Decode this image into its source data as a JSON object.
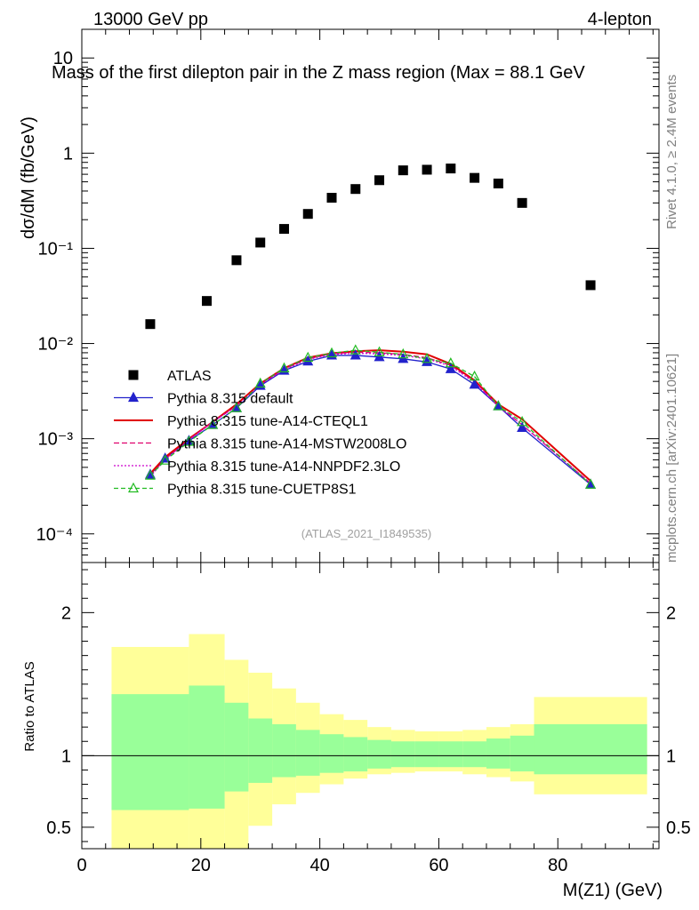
{
  "header": {
    "left": "13000 GeV pp",
    "right": "4-lepton",
    "side_top": "Rivet 4.1.0, ≥ 2.4M events",
    "side_bottom": "mcplots.cern.ch [arXiv:2401.10621]"
  },
  "chart_data": [
    {
      "type": "scatter",
      "panel": "main",
      "title": "Mass of the first dilepton pair in the Z mass region (Max = 88.1 GeV",
      "xlabel": "M(Z1) (GeV)",
      "ylabel": "dσ/dM (fb/GeV)",
      "yscale": "log",
      "xlim": [
        0,
        97
      ],
      "ylim": [
        5e-05,
        20
      ],
      "y_ticks": [
        "10",
        "1",
        "10⁻¹",
        "10⁻²",
        "10⁻³",
        "10⁻⁴"
      ],
      "y_tick_values": [
        10,
        1,
        0.1,
        0.01,
        0.001,
        0.0001
      ],
      "watermark": "(ATLAS_2021_I1849535)",
      "series": [
        {
          "name": "ATLAS",
          "color": "#000000",
          "marker": "square",
          "x": [
            11.5,
            21,
            26,
            30,
            34,
            38,
            42,
            46,
            50,
            54,
            58,
            62,
            66,
            70,
            74,
            85.5
          ],
          "y": [
            0.016,
            0.028,
            0.075,
            0.115,
            0.16,
            0.23,
            0.34,
            0.42,
            0.52,
            0.66,
            0.67,
            0.69,
            0.55,
            0.48,
            0.3,
            0.041
          ]
        },
        {
          "name": "Pythia 8.315 default",
          "color": "#2222cc",
          "marker": "triangle-filled",
          "dash": "",
          "x": [
            11.5,
            14,
            18,
            22,
            26,
            30,
            34,
            38,
            42,
            46,
            50,
            54,
            58,
            62,
            66,
            70,
            74,
            85.5
          ],
          "y": [
            0.00042,
            0.00062,
            0.00095,
            0.0014,
            0.0021,
            0.0036,
            0.0052,
            0.0065,
            0.0075,
            0.0075,
            0.0072,
            0.0069,
            0.0064,
            0.0054,
            0.0037,
            0.0022,
            0.0013,
            0.00033
          ]
        },
        {
          "name": "Pythia 8.315 tune-A14-CTEQL1",
          "color": "#e00000",
          "marker": "none",
          "dash": "",
          "x": [
            11.5,
            14,
            18,
            22,
            26,
            30,
            34,
            38,
            42,
            46,
            50,
            54,
            58,
            62,
            66,
            70,
            74,
            85.5
          ],
          "y": [
            0.00043,
            0.00064,
            0.001,
            0.0015,
            0.0023,
            0.0038,
            0.0055,
            0.0071,
            0.0079,
            0.0083,
            0.0085,
            0.0082,
            0.0077,
            0.0061,
            0.0041,
            0.0023,
            0.0016,
            0.00036
          ]
        },
        {
          "name": "Pythia 8.315 tune-A14-MSTW2008LO",
          "color": "#e0006e",
          "marker": "none",
          "dash": "6,3",
          "x": [
            11.5,
            14,
            18,
            22,
            26,
            30,
            34,
            38,
            42,
            46,
            50,
            54,
            58,
            62,
            66,
            70,
            74,
            85.5
          ],
          "y": [
            0.00041,
            0.00061,
            0.00098,
            0.0015,
            0.0022,
            0.0037,
            0.0054,
            0.0069,
            0.0078,
            0.0081,
            0.008,
            0.0077,
            0.0071,
            0.0059,
            0.004,
            0.0022,
            0.0014,
            0.00034
          ]
        },
        {
          "name": "Pythia 8.315 tune-A14-NNPDF2.3LO",
          "color": "#cc00cc",
          "marker": "none",
          "dash": "2,2",
          "x": [
            11.5,
            14,
            18,
            22,
            26,
            30,
            34,
            38,
            42,
            46,
            50,
            54,
            58,
            62,
            66,
            70,
            74,
            85.5
          ],
          "y": [
            0.0004,
            0.0006,
            0.00097,
            0.0015,
            0.0022,
            0.0037,
            0.0053,
            0.0068,
            0.0077,
            0.0079,
            0.0078,
            0.0075,
            0.0069,
            0.0058,
            0.0039,
            0.0022,
            0.0014,
            0.00034
          ]
        },
        {
          "name": "Pythia 8.315 tune-CUETP8S1",
          "color": "#22bb22",
          "marker": "triangle-open",
          "dash": "5,3",
          "x": [
            11.5,
            14,
            18,
            22,
            26,
            30,
            34,
            38,
            42,
            46,
            50,
            54,
            58,
            62,
            66,
            70,
            74,
            85.5
          ],
          "y": [
            0.00041,
            0.00059,
            0.00093,
            0.0014,
            0.0021,
            0.0038,
            0.0055,
            0.0071,
            0.0079,
            0.0085,
            0.0081,
            0.0077,
            0.0069,
            0.0062,
            0.0045,
            0.0022,
            0.0015,
            0.00033
          ]
        }
      ]
    },
    {
      "type": "area",
      "panel": "ratio",
      "ylabel": "Ratio to ATLAS",
      "xlabel": "M(Z1) (GeV)",
      "xlim": [
        0,
        97
      ],
      "ylim": [
        0.35,
        2.35
      ],
      "x_ticks": [
        "0",
        "20",
        "40",
        "60",
        "80"
      ],
      "x_tick_values": [
        0,
        20,
        40,
        60,
        80
      ],
      "y_ticks": [
        "0.5",
        "1",
        "2"
      ],
      "y_tick_values": [
        0.5,
        1,
        2
      ],
      "bins": [
        {
          "lo": 5,
          "hi": 18,
          "inner": [
            0.62,
            1.43
          ],
          "outer": [
            0.0,
            1.76
          ]
        },
        {
          "lo": 18,
          "hi": 24,
          "inner": [
            0.63,
            1.49
          ],
          "outer": [
            0.0,
            1.85
          ]
        },
        {
          "lo": 24,
          "hi": 28,
          "inner": [
            0.75,
            1.37
          ],
          "outer": [
            0.0,
            1.67
          ]
        },
        {
          "lo": 28,
          "hi": 32,
          "inner": [
            0.81,
            1.26
          ],
          "outer": [
            0.51,
            1.58
          ]
        },
        {
          "lo": 32,
          "hi": 36,
          "inner": [
            0.85,
            1.22
          ],
          "outer": [
            0.66,
            1.47
          ]
        },
        {
          "lo": 36,
          "hi": 40,
          "inner": [
            0.86,
            1.18
          ],
          "outer": [
            0.74,
            1.37
          ]
        },
        {
          "lo": 40,
          "hi": 44,
          "inner": [
            0.88,
            1.15
          ],
          "outer": [
            0.8,
            1.29
          ]
        },
        {
          "lo": 44,
          "hi": 48,
          "inner": [
            0.89,
            1.13
          ],
          "outer": [
            0.84,
            1.25
          ]
        },
        {
          "lo": 48,
          "hi": 52,
          "inner": [
            0.91,
            1.11
          ],
          "outer": [
            0.87,
            1.2
          ]
        },
        {
          "lo": 52,
          "hi": 56,
          "inner": [
            0.92,
            1.1
          ],
          "outer": [
            0.88,
            1.18
          ]
        },
        {
          "lo": 56,
          "hi": 60,
          "inner": [
            0.92,
            1.1
          ],
          "outer": [
            0.89,
            1.17
          ]
        },
        {
          "lo": 60,
          "hi": 64,
          "inner": [
            0.92,
            1.1
          ],
          "outer": [
            0.89,
            1.17
          ]
        },
        {
          "lo": 64,
          "hi": 68,
          "inner": [
            0.92,
            1.1
          ],
          "outer": [
            0.87,
            1.18
          ]
        },
        {
          "lo": 68,
          "hi": 72,
          "inner": [
            0.91,
            1.12
          ],
          "outer": [
            0.85,
            1.2
          ]
        },
        {
          "lo": 72,
          "hi": 76,
          "inner": [
            0.89,
            1.14
          ],
          "outer": [
            0.82,
            1.22
          ]
        },
        {
          "lo": 76,
          "hi": 95,
          "inner": [
            0.87,
            1.22
          ],
          "outer": [
            0.73,
            1.41
          ]
        }
      ],
      "colors": {
        "inner": "#99ff99",
        "outer": "#ffff99"
      }
    }
  ]
}
